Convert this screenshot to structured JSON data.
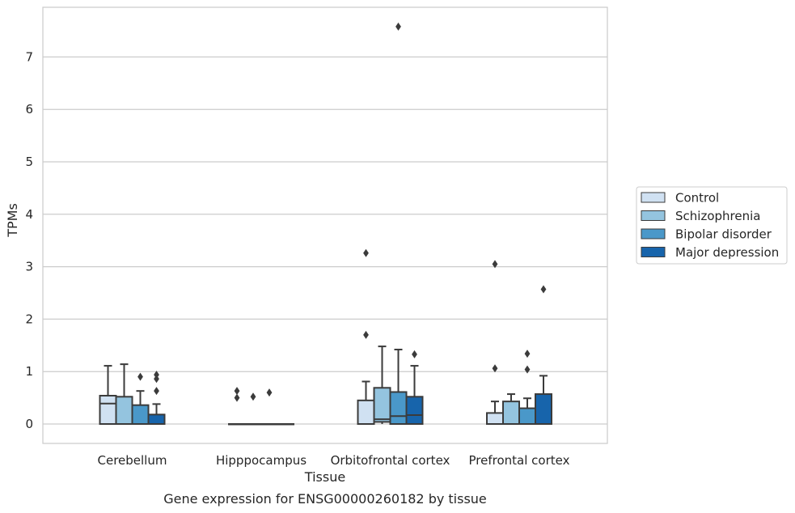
{
  "chart_data": {
    "type": "box",
    "caption": "Gene expression for ENSG00000260182 by tissue",
    "xlabel": "Tissue",
    "ylabel": "TPMs",
    "ylim": [
      -0.37,
      7.97
    ],
    "yticks": [
      "0",
      "1",
      "2",
      "3",
      "4",
      "5",
      "6",
      "7"
    ],
    "grid": true,
    "legend_position": "right",
    "categories": [
      "Cerebellum",
      "Hipppocampus",
      "Orbitofrontal cortex",
      "Prefrontal cortex"
    ],
    "series": [
      {
        "name": "Control",
        "color": "#d0e1f2",
        "boxes": [
          {
            "whislo": 0.0,
            "q1": 0.0,
            "med": 0.39,
            "q3": 0.54,
            "whishi": 1.11,
            "fliers": []
          },
          {
            "whislo": 0.0,
            "q1": 0.0,
            "med": 0.0,
            "q3": 0.0,
            "whishi": 0.0,
            "fliers": [
              0.5,
              0.63
            ]
          },
          {
            "whislo": 0.0,
            "q1": 0.0,
            "med": 0.0,
            "q3": 0.45,
            "whishi": 0.81,
            "fliers": [
              1.7,
              3.26
            ]
          },
          {
            "whislo": 0.0,
            "q1": 0.0,
            "med": 0.0,
            "q3": 0.21,
            "whishi": 0.43,
            "fliers": [
              1.06,
              3.05
            ]
          }
        ]
      },
      {
        "name": "Schizophrenia",
        "color": "#94c4df",
        "boxes": [
          {
            "whislo": 0.0,
            "q1": 0.0,
            "med": 0.0,
            "q3": 0.52,
            "whishi": 1.14,
            "fliers": []
          },
          {
            "whislo": 0.0,
            "q1": 0.0,
            "med": 0.0,
            "q3": 0.0,
            "whishi": 0.0,
            "fliers": [
              0.52
            ]
          },
          {
            "whislo": 0.0,
            "q1": 0.04,
            "med": 0.09,
            "q3": 0.69,
            "whishi": 1.48,
            "fliers": []
          },
          {
            "whislo": 0.0,
            "q1": 0.0,
            "med": 0.0,
            "q3": 0.43,
            "whishi": 0.57,
            "fliers": []
          }
        ]
      },
      {
        "name": "Bipolar disorder",
        "color": "#4a98c9",
        "boxes": [
          {
            "whislo": 0.0,
            "q1": 0.0,
            "med": 0.0,
            "q3": 0.36,
            "whishi": 0.63,
            "fliers": [
              0.9
            ]
          },
          {
            "whislo": 0.0,
            "q1": 0.0,
            "med": 0.0,
            "q3": 0.0,
            "whishi": 0.0,
            "fliers": [
              0.6
            ]
          },
          {
            "whislo": 0.0,
            "q1": 0.0,
            "med": 0.15,
            "q3": 0.61,
            "whishi": 1.42,
            "fliers": [
              7.58
            ]
          },
          {
            "whislo": 0.0,
            "q1": 0.0,
            "med": 0.0,
            "q3": 0.3,
            "whishi": 0.49,
            "fliers": [
              1.04,
              1.34
            ]
          }
        ]
      },
      {
        "name": "Major depression",
        "color": "#1764ab",
        "boxes": [
          {
            "whislo": 0.0,
            "q1": 0.0,
            "med": 0.0,
            "q3": 0.18,
            "whishi": 0.38,
            "fliers": [
              0.63,
              0.86,
              0.94
            ]
          },
          {
            "whislo": 0.0,
            "q1": 0.0,
            "med": 0.0,
            "q3": 0.0,
            "whishi": 0.0,
            "fliers": []
          },
          {
            "whislo": 0.0,
            "q1": 0.0,
            "med": 0.17,
            "q3": 0.52,
            "whishi": 1.11,
            "fliers": [
              1.33
            ]
          },
          {
            "whislo": 0.0,
            "q1": 0.0,
            "med": 0.0,
            "q3": 0.57,
            "whishi": 0.92,
            "fliers": [
              2.57
            ]
          }
        ]
      }
    ]
  }
}
